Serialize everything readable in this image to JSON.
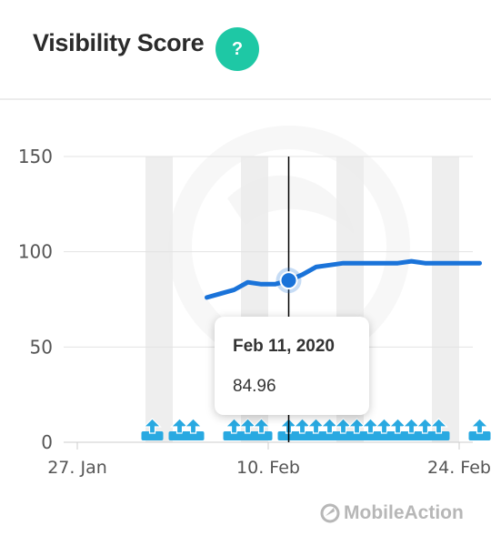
{
  "header": {
    "title": "Visibility Score",
    "help_label": "?"
  },
  "chart_data": {
    "type": "line",
    "title": "",
    "xlabel": "",
    "ylabel": "",
    "y_ticks": [
      0,
      50,
      100,
      150
    ],
    "ylim": [
      0,
      150
    ],
    "x_tick_labels": [
      "27. Jan",
      "10. Feb",
      "24. Feb"
    ],
    "x_tick_dates": [
      "2020-01-27",
      "2020-02-10",
      "2020-02-24"
    ],
    "xlim": [
      "2020-01-26",
      "2020-02-25"
    ],
    "weekend_bands": [
      "2020-01-25",
      "2020-02-01",
      "2020-02-08",
      "2020-02-15",
      "2020-02-22"
    ],
    "series": [
      {
        "color": "#1a73d9",
        "x": [
          "2020-02-05",
          "2020-02-06",
          "2020-02-07",
          "2020-02-08",
          "2020-02-09",
          "2020-02-10",
          "2020-02-11",
          "2020-02-12",
          "2020-02-13",
          "2020-02-14",
          "2020-02-15",
          "2020-02-16",
          "2020-02-17",
          "2020-02-18",
          "2020-02-19",
          "2020-02-20",
          "2020-02-21",
          "2020-02-22",
          "2020-02-23",
          "2020-02-24",
          "2020-02-25"
        ],
        "y": [
          76,
          78,
          80,
          84,
          83,
          83,
          84.96,
          88,
          92,
          93,
          94,
          94,
          94,
          94,
          94,
          95,
          94,
          94,
          94,
          94,
          94
        ]
      }
    ],
    "tooltip": {
      "date": "Feb 11, 2020",
      "value": "84.96",
      "x": "2020-02-11",
      "y": 84.96
    },
    "markers": {
      "icon": "update-arrow-icon",
      "color": "#29a9e1",
      "dates": [
        "2020-02-01",
        "2020-02-03",
        "2020-02-04",
        "2020-02-07",
        "2020-02-08",
        "2020-02-09",
        "2020-02-11",
        "2020-02-12",
        "2020-02-13",
        "2020-02-14",
        "2020-02-15",
        "2020-02-16",
        "2020-02-17",
        "2020-02-18",
        "2020-02-19",
        "2020-02-20",
        "2020-02-21",
        "2020-02-22",
        "2020-02-25"
      ]
    },
    "grid": true,
    "legend": "none"
  },
  "brand": {
    "name": "MobileAction",
    "icon": "mobileaction-logo-icon"
  }
}
